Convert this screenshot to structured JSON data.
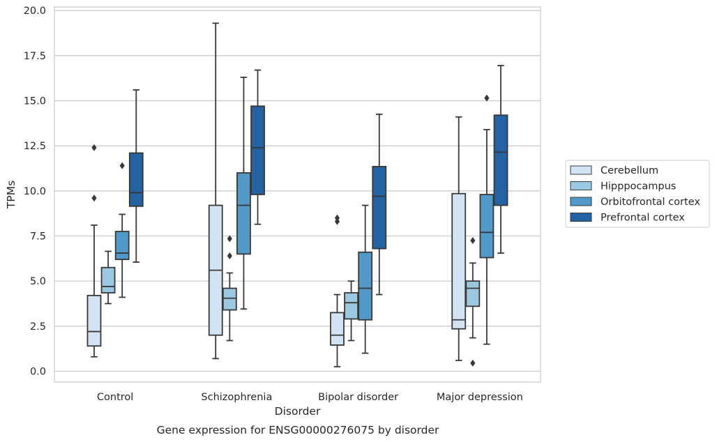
{
  "chart_data": {
    "type": "box",
    "title": "",
    "caption": "Gene expression for ENSG00000276075 by disorder",
    "xlabel": "Disorder",
    "ylabel": "TPMs",
    "ylim": [
      -0.6,
      20.2
    ],
    "yticks": [
      0.0,
      2.5,
      5.0,
      7.5,
      10.0,
      12.5,
      15.0,
      17.5,
      20.0
    ],
    "ytick_labels": [
      "0.0",
      "2.5",
      "5.0",
      "7.5",
      "10.0",
      "12.5",
      "15.0",
      "17.5",
      "20.0"
    ],
    "grid": "horizontal",
    "legend_position": "right",
    "categories": [
      "Control",
      "Schizophrenia",
      "Bipolar disorder",
      "Major depression"
    ],
    "series": [
      {
        "name": "Cerebellum",
        "color": "#d2e3f3",
        "boxes": [
          {
            "whislo": 0.8,
            "q1": 1.4,
            "med": 2.2,
            "q3": 4.2,
            "whishi": 8.1,
            "fliers": [
              9.6,
              12.4
            ]
          },
          {
            "whislo": 0.7,
            "q1": 2.0,
            "med": 5.6,
            "q3": 9.2,
            "whishi": 19.3,
            "fliers": []
          },
          {
            "whislo": 0.25,
            "q1": 1.45,
            "med": 2.0,
            "q3": 3.25,
            "whishi": 4.25,
            "fliers": [
              8.3,
              8.5
            ]
          },
          {
            "whislo": 0.6,
            "q1": 2.35,
            "med": 2.85,
            "q3": 9.85,
            "whishi": 14.1,
            "fliers": []
          }
        ]
      },
      {
        "name": "Hipppocampus",
        "color": "#9ac8e0",
        "boxes": [
          {
            "whislo": 3.75,
            "q1": 4.35,
            "med": 4.7,
            "q3": 5.75,
            "whishi": 6.65,
            "fliers": []
          },
          {
            "whislo": 1.7,
            "q1": 3.4,
            "med": 4.05,
            "q3": 4.6,
            "whishi": 5.45,
            "fliers": [
              6.4,
              7.35
            ]
          },
          {
            "whislo": 1.7,
            "q1": 2.9,
            "med": 3.8,
            "q3": 4.35,
            "whishi": 5.0,
            "fliers": []
          },
          {
            "whislo": 1.85,
            "q1": 3.6,
            "med": 4.6,
            "q3": 5.0,
            "whishi": 6.0,
            "fliers": [
              7.25,
              0.45
            ]
          }
        ]
      },
      {
        "name": "Orbitofrontal cortex",
        "color": "#5199c8",
        "boxes": [
          {
            "whislo": 4.1,
            "q1": 6.2,
            "med": 6.55,
            "q3": 7.75,
            "whishi": 8.7,
            "fliers": [
              11.4
            ]
          },
          {
            "whislo": 3.45,
            "q1": 6.5,
            "med": 9.2,
            "q3": 11.0,
            "whishi": 16.3,
            "fliers": []
          },
          {
            "whislo": 1.0,
            "q1": 2.85,
            "med": 4.6,
            "q3": 6.6,
            "whishi": 9.2,
            "fliers": []
          },
          {
            "whislo": 1.5,
            "q1": 6.3,
            "med": 7.7,
            "q3": 9.8,
            "whishi": 13.4,
            "fliers": [
              15.15
            ]
          }
        ]
      },
      {
        "name": "Prefrontal cortex",
        "color": "#2362a3",
        "boxes": [
          {
            "whislo": 6.05,
            "q1": 9.15,
            "med": 9.9,
            "q3": 12.1,
            "whishi": 15.6,
            "fliers": []
          },
          {
            "whislo": 8.15,
            "q1": 9.8,
            "med": 12.4,
            "q3": 14.7,
            "whishi": 16.7,
            "fliers": []
          },
          {
            "whislo": 4.25,
            "q1": 6.8,
            "med": 9.7,
            "q3": 11.35,
            "whishi": 14.25,
            "fliers": []
          },
          {
            "whislo": 6.55,
            "q1": 9.2,
            "med": 12.15,
            "q3": 14.2,
            "whishi": 16.95,
            "fliers": []
          }
        ]
      }
    ]
  }
}
